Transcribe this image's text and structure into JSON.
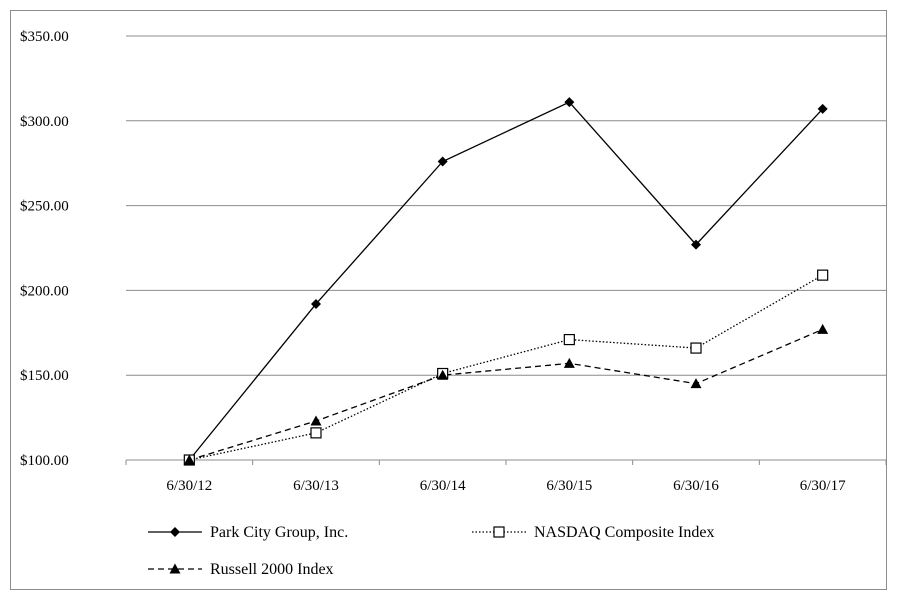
{
  "chart_data": {
    "type": "line",
    "title": "",
    "xlabel": "",
    "ylabel": "",
    "categories": [
      "6/30/12",
      "6/30/13",
      "6/30/14",
      "6/30/15",
      "6/30/16",
      "6/30/17"
    ],
    "ylim": [
      100,
      350
    ],
    "yticks": [
      100,
      150,
      200,
      250,
      300,
      350
    ],
    "ytick_labels": [
      "$100.00",
      "$150.00",
      "$200.00",
      "$250.00",
      "$300.00",
      "$350.00"
    ],
    "grid": "horizontal",
    "legend_placement": "bottom",
    "series": [
      {
        "name": "Park City Group, Inc.",
        "values": [
          100,
          192,
          276,
          311,
          227,
          307
        ],
        "marker": "diamond-filled",
        "line": "solid",
        "color": "#000000"
      },
      {
        "name": "NASDAQ Composite Index",
        "values": [
          100,
          116,
          151,
          171,
          166,
          209
        ],
        "marker": "square-open",
        "line": "dotted",
        "color": "#000000"
      },
      {
        "name": "Russell 2000 Index",
        "values": [
          100,
          123,
          150,
          157,
          145,
          177
        ],
        "marker": "triangle-filled",
        "line": "dashed",
        "color": "#000000"
      }
    ]
  }
}
